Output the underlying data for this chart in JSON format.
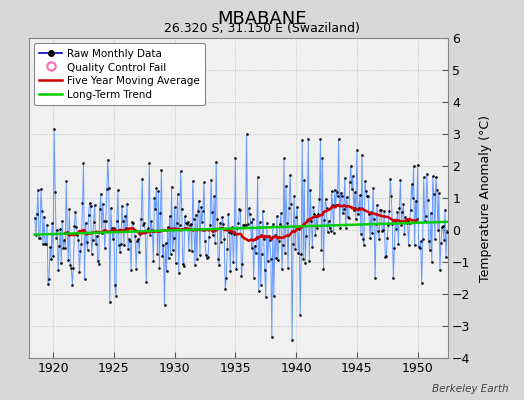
{
  "title": "MBABANE",
  "subtitle": "26.320 S, 31.150 E (Swaziland)",
  "ylabel": "Temperature Anomaly (°C)",
  "watermark": "Berkeley Earth",
  "xlim": [
    1918.0,
    1952.5
  ],
  "ylim": [
    -4,
    6
  ],
  "yticks": [
    -4,
    -3,
    -2,
    -1,
    0,
    1,
    2,
    3,
    4,
    5,
    6
  ],
  "xticks": [
    1920,
    1925,
    1930,
    1935,
    1940,
    1945,
    1950
  ],
  "bg_color": "#d8d8d8",
  "plot_bg_color": "#f0f0f0",
  "raw_line_color": "#6699ff",
  "raw_dot_color": "#000000",
  "ma_color": "#cc0000",
  "trend_color": "#00cc00",
  "seed": 42,
  "title_fontsize": 13,
  "subtitle_fontsize": 9,
  "tick_fontsize": 9,
  "ylabel_fontsize": 9
}
